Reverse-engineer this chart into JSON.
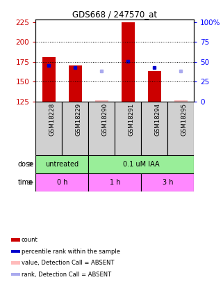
{
  "title": "GDS668 / 247570_at",
  "samples": [
    "GSM18228",
    "GSM18229",
    "GSM18290",
    "GSM18291",
    "GSM18294",
    "GSM18295"
  ],
  "bar_values": [
    181,
    170,
    127,
    225,
    163,
    127
  ],
  "bar_bottom": 125,
  "bar_present": [
    true,
    true,
    false,
    true,
    true,
    false
  ],
  "rank_values": [
    170,
    168,
    163,
    176,
    168,
    163
  ],
  "ylim": [
    125,
    228
  ],
  "yticks_left": [
    125,
    150,
    175,
    200,
    225
  ],
  "right_ticks_pos": [
    125,
    150,
    175,
    200,
    225
  ],
  "right_tick_labels": [
    "0",
    "25",
    "50",
    "75",
    "100%"
  ],
  "bar_color_present": "#cc0000",
  "bar_color_absent": "#ffbbbb",
  "rank_color_present": "#0000cc",
  "rank_color_absent": "#aaaaee",
  "bar_width": 0.5,
  "dose_groups": [
    {
      "label": "untreated",
      "start": 0,
      "end": 2,
      "color": "#99ee99"
    },
    {
      "label": "0.1 uM IAA",
      "start": 2,
      "end": 6,
      "color": "#99ee99"
    }
  ],
  "time_groups": [
    {
      "label": "0 h",
      "start": 0,
      "end": 2,
      "color": "#ff88ff"
    },
    {
      "label": "1 h",
      "start": 2,
      "end": 4,
      "color": "#ff88ff"
    },
    {
      "label": "3 h",
      "start": 4,
      "end": 6,
      "color": "#ff88ff"
    }
  ],
  "legend_items": [
    {
      "color": "#cc0000",
      "label": "count"
    },
    {
      "color": "#0000cc",
      "label": "percentile rank within the sample"
    },
    {
      "color": "#ffbbbb",
      "label": "value, Detection Call = ABSENT"
    },
    {
      "color": "#aaaaee",
      "label": "rank, Detection Call = ABSENT"
    }
  ]
}
